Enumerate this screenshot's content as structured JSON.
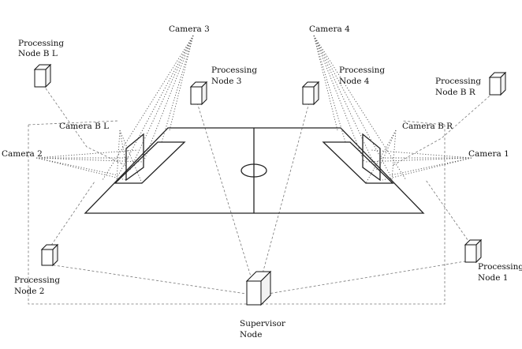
{
  "diagram": {
    "cameras": {
      "camera_3": "Camera 3",
      "camera_4": "Camera 4",
      "camera_2": "Camera 2",
      "camera_1": "Camera 1",
      "camera_bl": "Camera B L",
      "camera_br": "Camera B R"
    },
    "nodes": {
      "node_bl": [
        "Processing",
        "Node B L"
      ],
      "node_3": [
        "Processing",
        "Node 3"
      ],
      "node_4": [
        "Processing",
        "Node 4"
      ],
      "node_br": [
        "Processing",
        "Node B R"
      ],
      "node_2": [
        "Processing",
        "Node 2"
      ],
      "node_1": [
        "Processing",
        "Node 1"
      ],
      "supervisor": [
        "Supervisor",
        "Node"
      ]
    }
  }
}
